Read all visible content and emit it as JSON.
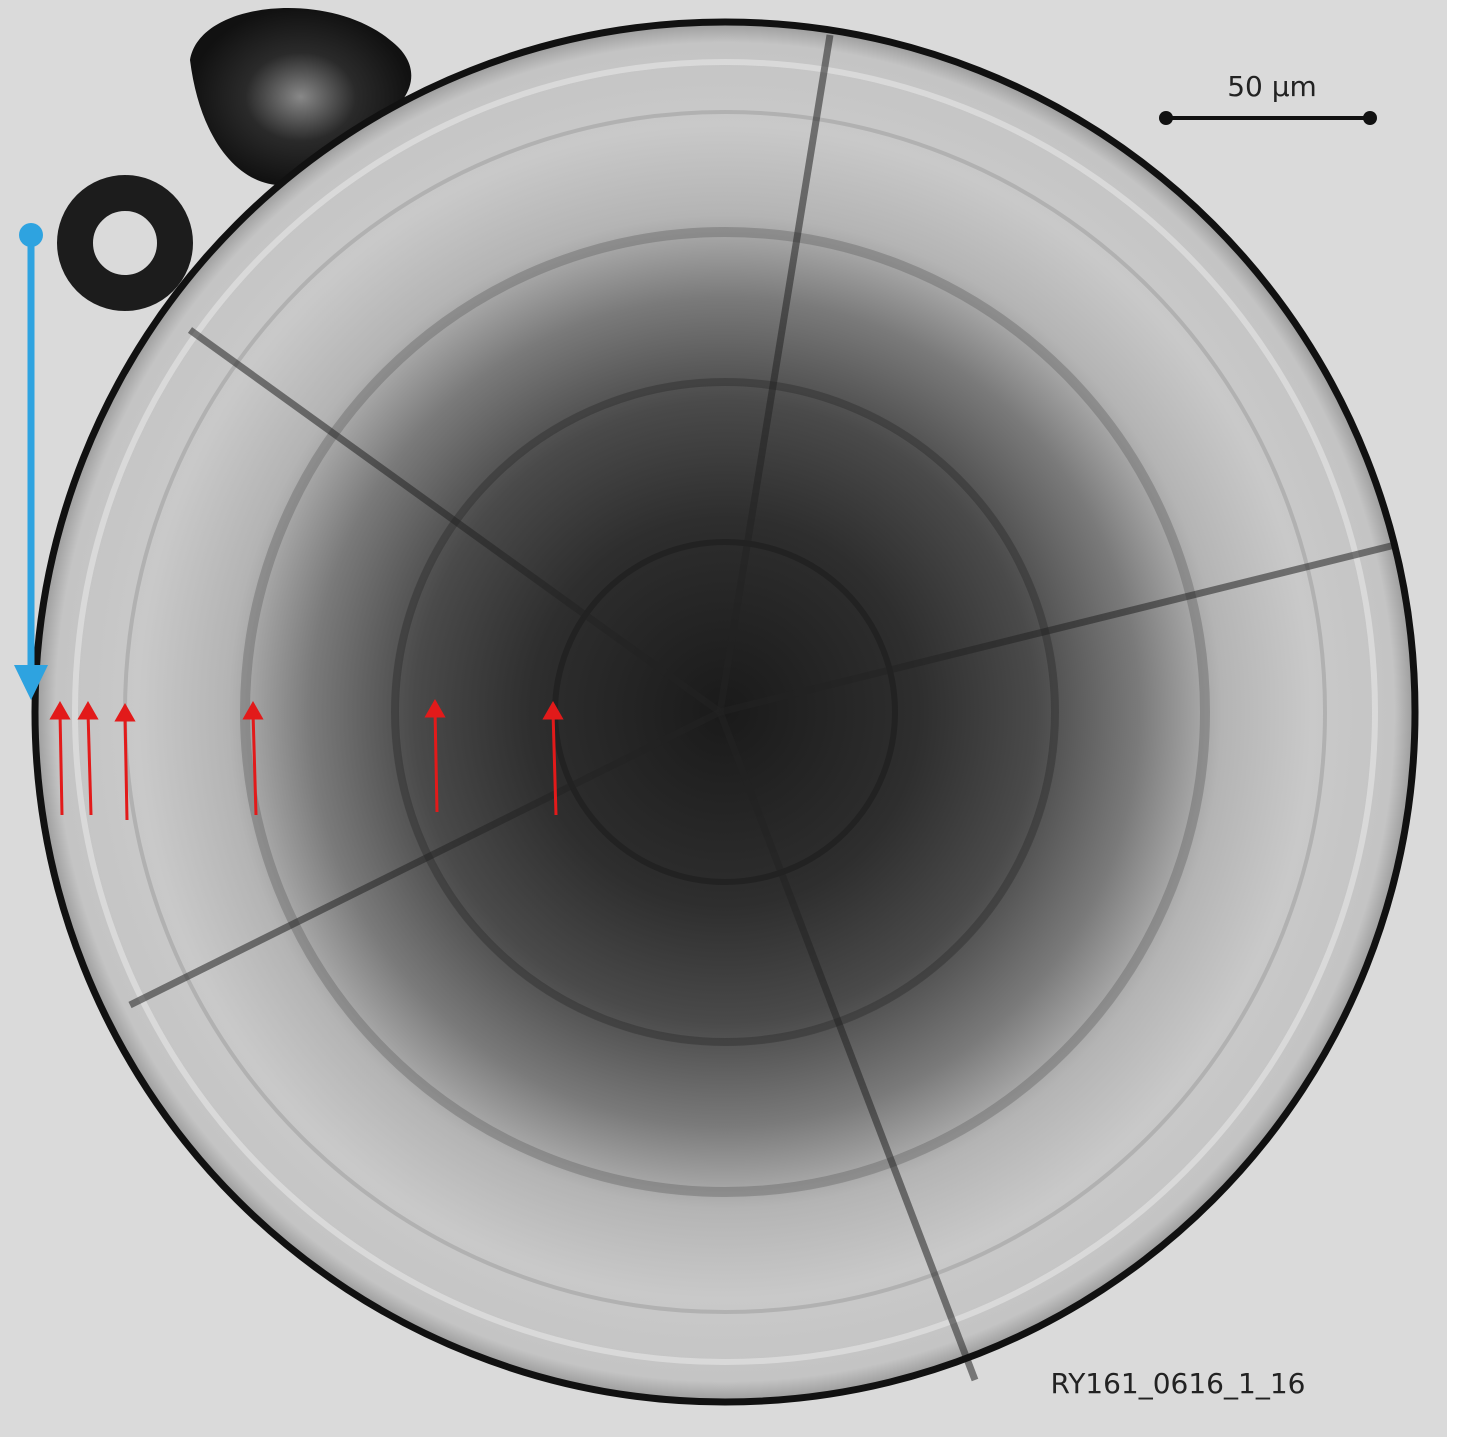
{
  "scale_bar": {
    "label": "50 µm"
  },
  "image_id": "RY161_0616_1_16"
}
